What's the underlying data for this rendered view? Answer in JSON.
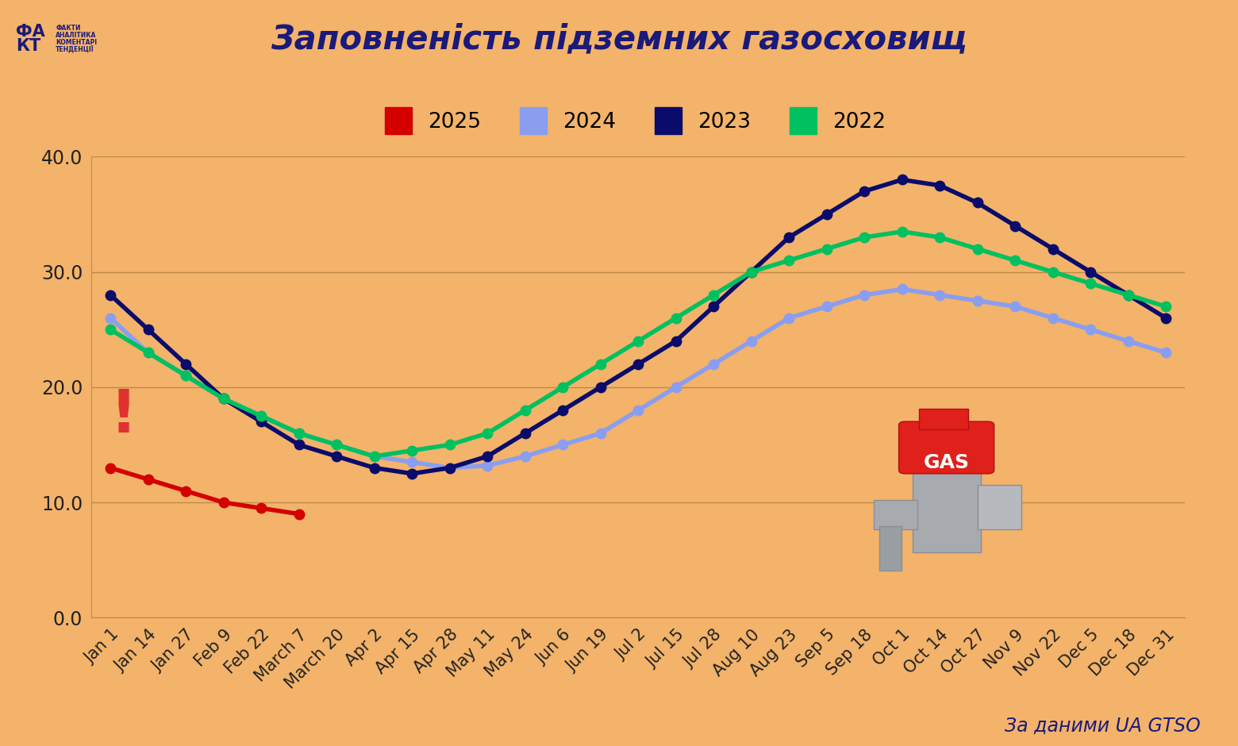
{
  "chart_data": {
    "type": "line",
    "title": "Заповненість підземних газосховищ",
    "source": "За даними UA GTSO",
    "logo": {
      "mark": [
        "ФА",
        "КТ"
      ],
      "lines": [
        "ФАКТИ",
        "АНАЛІТИКА",
        "КОМЕНТАРІ",
        "ТЕНДЕНЦІЇ"
      ]
    },
    "annotation": "!",
    "icon_label": "GAS",
    "categories": [
      "Jan 1",
      "Jan 14",
      "Jan 27",
      "Feb 9",
      "Feb 22",
      "March 7",
      "March 20",
      "Apr 2",
      "Apr 15",
      "Apr 28",
      "May 11",
      "May 24",
      "Jun 6",
      "Jun 19",
      "Jul 2",
      "Jul 15",
      "Jul 28",
      "Aug 10",
      "Aug 23",
      "Sep 5",
      "Sep 18",
      "Oct 1",
      "Oct 14",
      "Oct 27",
      "Nov 9",
      "Nov 22",
      "Dec 5",
      "Dec 18",
      "Dec 31"
    ],
    "series": [
      {
        "name": "2025",
        "color": "#d40000",
        "marker": "o",
        "line_style": "solid",
        "values": [
          13,
          12,
          11,
          10,
          9.5,
          9,
          null,
          null,
          null,
          null,
          null,
          null,
          null,
          null,
          null,
          null,
          null,
          null,
          null,
          null,
          null,
          null,
          null,
          null,
          null,
          null,
          null,
          null,
          null
        ]
      },
      {
        "name": "2024",
        "color": "#8a9ef0",
        "marker": "o",
        "line_style": "solid",
        "values": [
          26,
          23,
          21,
          19,
          17.5,
          16,
          15,
          14,
          13.5,
          13,
          13.2,
          14,
          15,
          16,
          18,
          20,
          22,
          24,
          26,
          27,
          28,
          28.5,
          28,
          27.5,
          27,
          26,
          25,
          24,
          23
        ]
      },
      {
        "name": "2023",
        "color": "#0b0b6b",
        "marker": "o",
        "line_style": "solid",
        "values": [
          28,
          25,
          22,
          19,
          17,
          15,
          14,
          13,
          12.5,
          13,
          14,
          16,
          18,
          20,
          22,
          24,
          27,
          30,
          33,
          35,
          37,
          38,
          37.5,
          36,
          34,
          32,
          30,
          28,
          26
        ]
      },
      {
        "name": "2022",
        "color": "#00c060",
        "marker": "o",
        "line_style": "solid",
        "values": [
          25,
          23,
          21,
          19,
          17.5,
          16,
          15,
          14,
          14.5,
          15,
          16,
          18,
          20,
          22,
          24,
          26,
          28,
          30,
          31,
          32,
          33,
          33.5,
          33,
          32,
          31,
          30,
          29,
          28,
          27
        ]
      }
    ],
    "ylim": [
      0,
      40
    ],
    "yticks": [
      {
        "value": 0,
        "label": "0.0"
      },
      {
        "value": 10,
        "label": "10.0"
      },
      {
        "value": 20,
        "label": "20.0"
      },
      {
        "value": 30,
        "label": "30.0"
      },
      {
        "value": 40,
        "label": "40.0"
      }
    ],
    "grid": true,
    "legend": "upper center"
  }
}
